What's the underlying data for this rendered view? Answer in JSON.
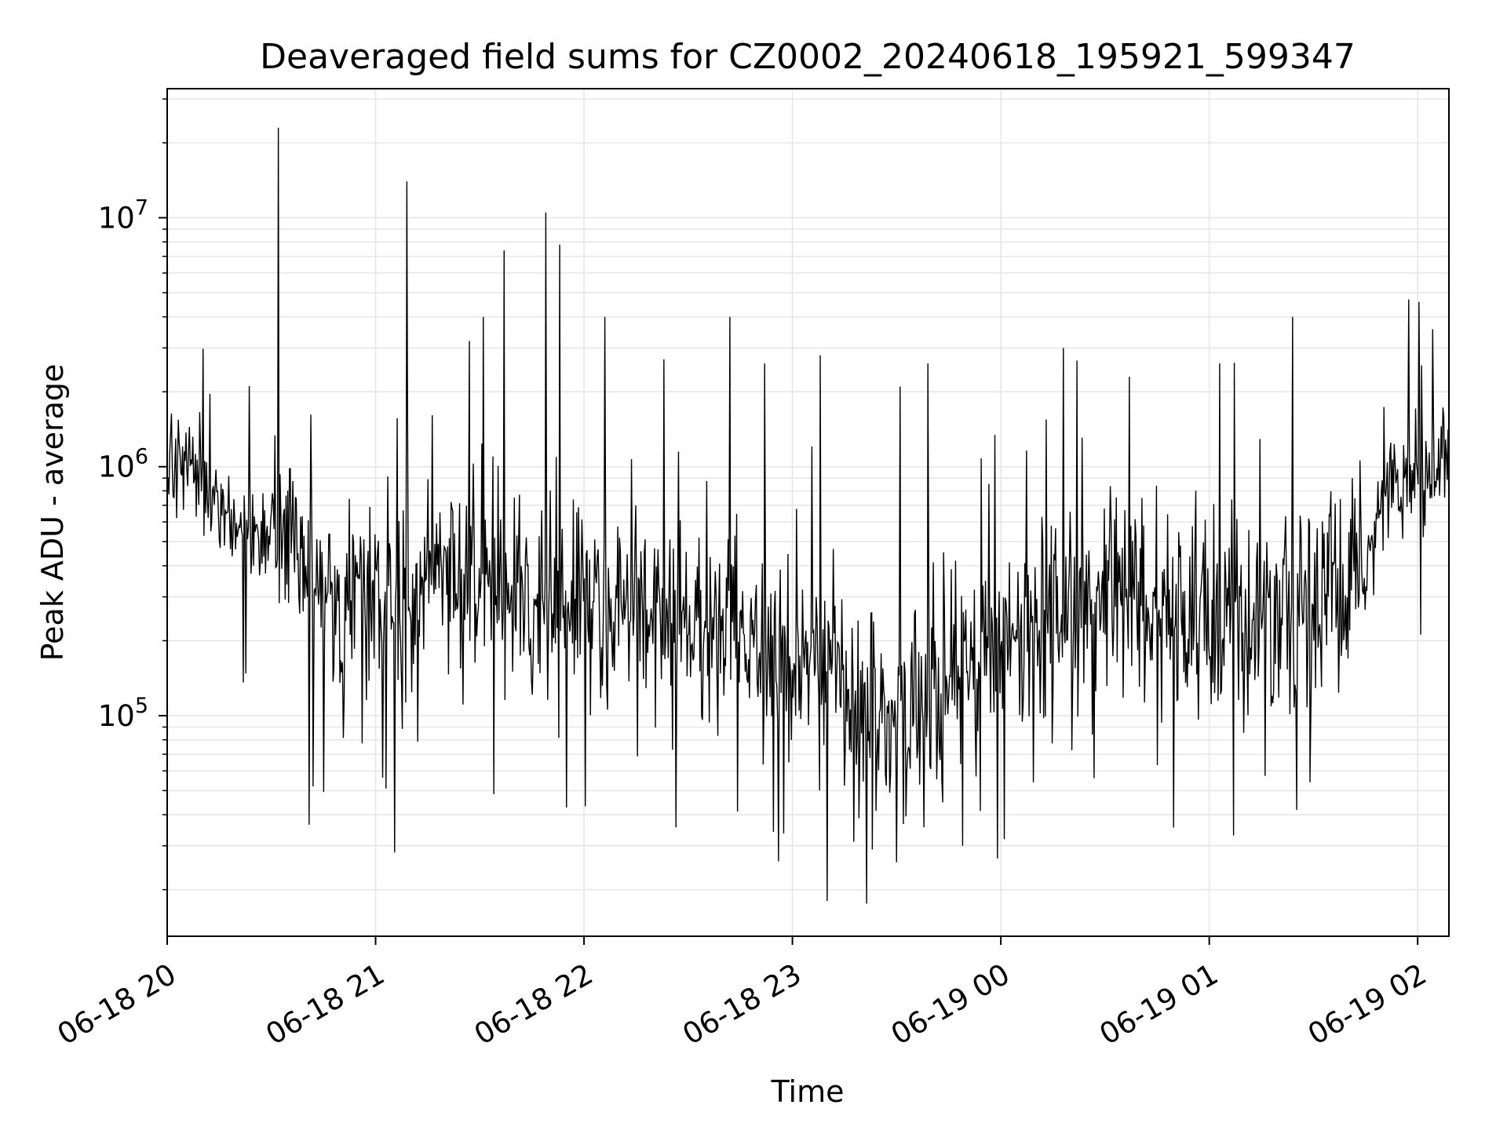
{
  "chart_data": {
    "type": "line",
    "title": "Deaveraged field sums for CZ0002_20240618_195921_599347",
    "xlabel": "Time",
    "ylabel": "Peak ADU - average",
    "yscale": "log",
    "xlim": [
      "2024-06-18T20:00",
      "2024-06-19T02:09"
    ],
    "ylim": [
      13000,
      33000000
    ],
    "grid": true,
    "line_color": "#000000",
    "grid_color": "#e6e6e6",
    "x_ticks": [
      "06-18 20",
      "06-18 21",
      "06-18 22",
      "06-18 23",
      "06-19 00",
      "06-19 01",
      "06-19 02"
    ],
    "x_tick_times": [
      "2024-06-18T20:00",
      "2024-06-18T21:00",
      "2024-06-18T22:00",
      "2024-06-18T23:00",
      "2024-06-19T00:00",
      "2024-06-19T01:00",
      "2024-06-19T02:00"
    ],
    "y_ticks": [
      {
        "value": 100000,
        "base": "10",
        "exp": "5"
      },
      {
        "value": 1000000,
        "base": "10",
        "exp": "6"
      },
      {
        "value": 10000000,
        "base": "10",
        "exp": "7"
      }
    ],
    "series": [
      {
        "x": [
          "2024-06-18T20:00",
          "2024-06-18T20:10",
          "2024-06-18T20:15",
          "2024-06-18T20:20",
          "2024-06-18T20:30",
          "2024-06-18T20:40",
          "2024-06-18T20:45",
          "2024-06-18T20:50",
          "2024-06-18T21:00",
          "2024-06-18T21:15",
          "2024-06-18T21:30",
          "2024-06-18T21:45",
          "2024-06-18T22:00",
          "2024-06-18T22:15",
          "2024-06-18T22:30",
          "2024-06-18T22:45",
          "2024-06-18T23:00",
          "2024-06-18T23:10",
          "2024-06-18T23:20",
          "2024-06-18T23:30",
          "2024-06-18T23:45",
          "2024-06-19T00:00",
          "2024-06-19T00:15",
          "2024-06-19T00:30",
          "2024-06-19T00:45",
          "2024-06-19T01:00",
          "2024-06-19T01:15",
          "2024-06-19T01:30",
          "2024-06-19T01:40",
          "2024-06-19T01:45",
          "2024-06-19T01:50",
          "2024-06-19T02:00",
          "2024-06-19T02:09"
        ],
        "y": [
          1100000,
          950000,
          700000,
          550000,
          550000,
          420000,
          300000,
          280000,
          300000,
          330000,
          350000,
          330000,
          300000,
          260000,
          230000,
          200000,
          170000,
          200000,
          100000,
          90000,
          130000,
          200000,
          250000,
          280000,
          270000,
          250000,
          240000,
          300000,
          350000,
          400000,
          750000,
          950000,
          1150000
        ]
      }
    ],
    "spikes_max": [
      {
        "x": "2024-06-18T20:32",
        "y": 23000000
      },
      {
        "x": "2024-06-18T21:09",
        "y": 14000000
      },
      {
        "x": "2024-06-18T21:27",
        "y": 3200000
      },
      {
        "x": "2024-06-18T21:31",
        "y": 4000000
      },
      {
        "x": "2024-06-18T21:37",
        "y": 7400000
      },
      {
        "x": "2024-06-18T21:49",
        "y": 10500000
      },
      {
        "x": "2024-06-18T21:53",
        "y": 7800000
      },
      {
        "x": "2024-06-18T22:06",
        "y": 4000000
      },
      {
        "x": "2024-06-18T22:23",
        "y": 2700000
      },
      {
        "x": "2024-06-18T22:42",
        "y": 4000000
      },
      {
        "x": "2024-06-18T22:52",
        "y": 2600000
      },
      {
        "x": "2024-06-18T23:08",
        "y": 2800000
      },
      {
        "x": "2024-06-18T23:31",
        "y": 2100000
      },
      {
        "x": "2024-06-18T23:39",
        "y": 2600000
      },
      {
        "x": "2024-06-19T00:18",
        "y": 3000000
      },
      {
        "x": "2024-06-19T00:37",
        "y": 2300000
      },
      {
        "x": "2024-06-19T01:03",
        "y": 2600000
      },
      {
        "x": "2024-06-19T01:24",
        "y": 4000000
      }
    ],
    "dips_min": [
      {
        "x": "2024-06-18T20:42",
        "y": 52000
      },
      {
        "x": "2024-06-18T21:03",
        "y": 51000
      },
      {
        "x": "2024-06-18T22:56",
        "y": 26000
      },
      {
        "x": "2024-06-18T23:10",
        "y": 18000
      },
      {
        "x": "2024-06-18T23:23",
        "y": 29000
      },
      {
        "x": "2024-06-18T23:49",
        "y": 30000
      },
      {
        "x": "2024-06-19T01:07",
        "y": 33000
      },
      {
        "x": "2024-06-19T01:29",
        "y": 54000
      }
    ]
  }
}
